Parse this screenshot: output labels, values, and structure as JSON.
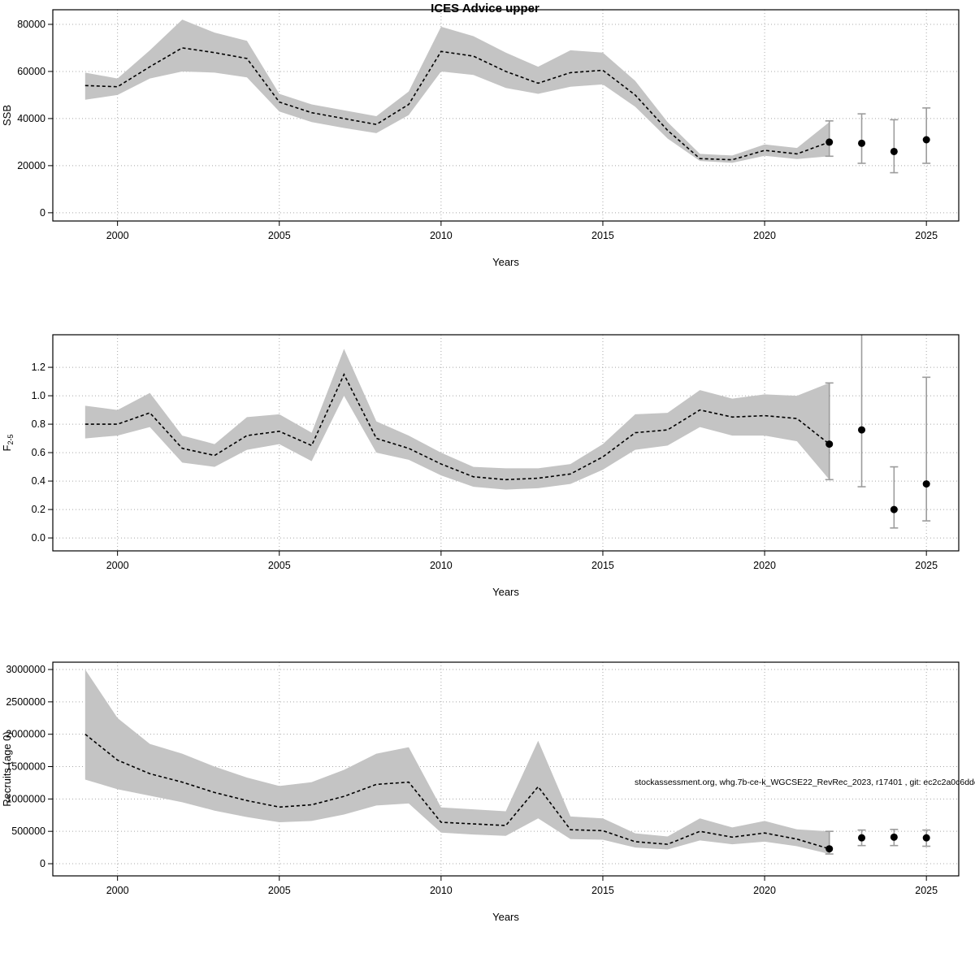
{
  "title": "ICES Advice upper",
  "annotation": "stockassessment.org, whg.7b-ce-k_WGCSE22_RevRec_2023, r17401 , git: ec2c2a0c6dde",
  "colors": {
    "band": "#c4c4c4",
    "line": "#000000",
    "errorbar": "#9c9c9c",
    "grid": "#a8a8a8",
    "background": "#ffffff"
  },
  "chart_data": [
    {
      "id": "ssb",
      "type": "line",
      "title": "ICES Advice upper",
      "xlabel": "Years",
      "ylabel": "SSB",
      "x": [
        1999,
        2000,
        2001,
        2002,
        2003,
        2004,
        2005,
        2006,
        2007,
        2008,
        2009,
        2010,
        2011,
        2012,
        2013,
        2014,
        2015,
        2016,
        2017,
        2018,
        2019,
        2020,
        2021,
        2022
      ],
      "series": [
        {
          "name": "estimate",
          "values": [
            54000,
            53500,
            62000,
            70000,
            68000,
            65500,
            47000,
            42500,
            40000,
            37500,
            46000,
            68500,
            66500,
            60000,
            55000,
            59500,
            60500,
            50000,
            35000,
            23000,
            22500,
            26500,
            25000,
            30000
          ]
        },
        {
          "name": "lower95",
          "values": [
            48000,
            50000,
            57000,
            60000,
            59500,
            57500,
            43000,
            38500,
            36000,
            33800,
            41500,
            60000,
            58500,
            53000,
            50500,
            53500,
            54500,
            45000,
            31500,
            22000,
            21200,
            24200,
            22800,
            24000
          ]
        },
        {
          "name": "upper95",
          "values": [
            59500,
            57000,
            69000,
            82000,
            76500,
            73000,
            50500,
            46000,
            43500,
            41000,
            51500,
            79000,
            75000,
            68000,
            62000,
            69000,
            68000,
            56000,
            38500,
            25000,
            24300,
            29000,
            27500,
            38500
          ]
        }
      ],
      "forecast": {
        "x": [
          2022,
          2023,
          2024,
          2025
        ],
        "est": [
          30000,
          29500,
          26000,
          31000
        ],
        "lo": [
          24000,
          21000,
          17000,
          21000
        ],
        "hi": [
          39000,
          42000,
          39500,
          44500
        ]
      },
      "xlim": [
        1998,
        2026
      ],
      "ylim": [
        -3500,
        86200
      ],
      "xticks": [
        2000,
        2005,
        2010,
        2015,
        2020,
        2025
      ],
      "xtick_labels": [
        "2000",
        "2005",
        "2010",
        "2015",
        "2020",
        "2025"
      ],
      "yticks": [
        0,
        20000,
        40000,
        60000,
        80000
      ],
      "ytick_labels": [
        "0",
        "20000",
        "40000",
        "60000",
        "80000"
      ],
      "grid": true,
      "legend": "none"
    },
    {
      "id": "f",
      "type": "line",
      "title": "",
      "xlabel": "Years",
      "ylabel": "F",
      "ylabel_sub": "2-5",
      "x": [
        1999,
        2000,
        2001,
        2002,
        2003,
        2004,
        2005,
        2006,
        2007,
        2008,
        2009,
        2010,
        2011,
        2012,
        2013,
        2014,
        2015,
        2016,
        2017,
        2018,
        2019,
        2020,
        2021,
        2022
      ],
      "series": [
        {
          "name": "estimate",
          "values": [
            0.8,
            0.8,
            0.88,
            0.63,
            0.58,
            0.72,
            0.75,
            0.65,
            1.15,
            0.7,
            0.63,
            0.52,
            0.43,
            0.41,
            0.42,
            0.45,
            0.57,
            0.74,
            0.76,
            0.9,
            0.85,
            0.86,
            0.84,
            0.66
          ]
        },
        {
          "name": "lower95",
          "values": [
            0.7,
            0.72,
            0.78,
            0.53,
            0.5,
            0.62,
            0.66,
            0.54,
            1.0,
            0.6,
            0.55,
            0.44,
            0.36,
            0.34,
            0.35,
            0.38,
            0.48,
            0.62,
            0.65,
            0.78,
            0.72,
            0.72,
            0.68,
            0.41
          ]
        },
        {
          "name": "upper95",
          "values": [
            0.93,
            0.9,
            1.02,
            0.72,
            0.66,
            0.85,
            0.87,
            0.74,
            1.33,
            0.82,
            0.72,
            0.6,
            0.5,
            0.49,
            0.49,
            0.52,
            0.66,
            0.87,
            0.88,
            1.04,
            0.98,
            1.01,
            1.0,
            1.09
          ]
        }
      ],
      "forecast": {
        "x": [
          2022,
          2023,
          2024,
          2025
        ],
        "est": [
          0.66,
          0.76,
          0.2,
          0.38
        ],
        "lo": [
          0.41,
          0.36,
          0.07,
          0.12
        ],
        "hi": [
          1.09,
          1.5,
          0.5,
          1.13
        ]
      },
      "xlim": [
        1998,
        2026
      ],
      "ylim": [
        -0.091,
        1.429
      ],
      "xticks": [
        2000,
        2005,
        2010,
        2015,
        2020,
        2025
      ],
      "xtick_labels": [
        "2000",
        "2005",
        "2010",
        "2015",
        "2020",
        "2025"
      ],
      "yticks": [
        0.0,
        0.2,
        0.4,
        0.6,
        0.8,
        1.0,
        1.2
      ],
      "ytick_labels": [
        "0.0",
        "0.2",
        "0.4",
        "0.6",
        "0.8",
        "1.0",
        "1.2"
      ],
      "grid": true,
      "legend": "none"
    },
    {
      "id": "recruits",
      "type": "line",
      "title": "",
      "xlabel": "Years",
      "ylabel": "Recruits (age 0)",
      "x": [
        1999,
        2000,
        2001,
        2002,
        2003,
        2004,
        2005,
        2006,
        2007,
        2008,
        2009,
        2010,
        2011,
        2012,
        2013,
        2014,
        2015,
        2016,
        2017,
        2018,
        2019,
        2020,
        2021,
        2022
      ],
      "series": [
        {
          "name": "estimate",
          "values": [
            2000000,
            1600000,
            1390000,
            1260000,
            1100000,
            975000,
            875000,
            910000,
            1040000,
            1225000,
            1260000,
            640000,
            615000,
            590000,
            1190000,
            525000,
            510000,
            340000,
            300000,
            500000,
            410000,
            475000,
            380000,
            230000
          ]
        },
        {
          "name": "lower95",
          "values": [
            1300000,
            1150000,
            1050000,
            950000,
            820000,
            720000,
            640000,
            660000,
            760000,
            900000,
            930000,
            480000,
            450000,
            430000,
            700000,
            380000,
            370000,
            250000,
            220000,
            360000,
            300000,
            340000,
            270000,
            150000
          ]
        },
        {
          "name": "upper95",
          "values": [
            3000000,
            2250000,
            1850000,
            1700000,
            1500000,
            1330000,
            1200000,
            1260000,
            1450000,
            1700000,
            1800000,
            870000,
            840000,
            810000,
            1900000,
            730000,
            700000,
            470000,
            420000,
            700000,
            560000,
            660000,
            530000,
            500000
          ]
        }
      ],
      "forecast": {
        "x": [
          2022,
          2023,
          2024,
          2025
        ],
        "est": [
          230000,
          400000,
          410000,
          400000
        ],
        "lo": [
          150000,
          280000,
          280000,
          270000
        ],
        "hi": [
          500000,
          520000,
          530000,
          520000
        ]
      },
      "xlim": [
        1998,
        2026
      ],
      "ylim": [
        -188000,
        3113000
      ],
      "xticks": [
        2000,
        2005,
        2010,
        2015,
        2020,
        2025
      ],
      "xtick_labels": [
        "2000",
        "2005",
        "2010",
        "2015",
        "2020",
        "2025"
      ],
      "yticks": [
        0,
        500000,
        1000000,
        1500000,
        2000000,
        2500000,
        3000000
      ],
      "ytick_labels": [
        "0",
        "500000",
        "1000000",
        "1500000",
        "2000000",
        "2500000",
        "3000000"
      ],
      "grid": true,
      "legend": "none"
    }
  ]
}
